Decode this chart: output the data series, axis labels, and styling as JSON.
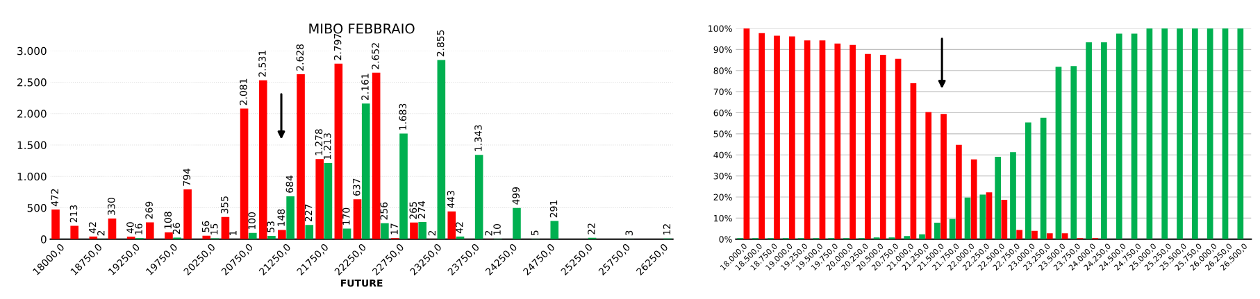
{
  "chart_data": [
    {
      "type": "bar",
      "title": "MIBO FEBBRAIO",
      "xlabel": "FUTURE",
      "categories": [
        "18000,0",
        null,
        "18750,0",
        null,
        "19250,0",
        null,
        "19750,0",
        null,
        "20250,0",
        null,
        "20750,0",
        null,
        "21250,0",
        null,
        "21750,0",
        null,
        "22250,0",
        null,
        "22750,0",
        null,
        "23250,0",
        null,
        "23750,0",
        null,
        "24250,0",
        null,
        "24750,0",
        null,
        "25250,0",
        null,
        "25750,0",
        null,
        "26250,0"
      ],
      "series": [
        {
          "color": "#ff0000",
          "values": [
            472,
            213,
            42,
            330,
            40,
            269,
            108,
            794,
            56,
            355,
            2081,
            2531,
            148,
            2628,
            1278,
            2797,
            637,
            2652,
            17,
            265,
            2,
            443,
            null,
            2,
            null,
            null,
            null,
            null,
            null,
            null,
            null,
            null,
            null
          ],
          "value_labels": [
            "472",
            "213",
            "42",
            "330",
            "40",
            "269",
            "108",
            "794",
            "56",
            "355",
            "2.081",
            "2.531",
            "148",
            "2.628",
            "1.278",
            "2.797",
            "637",
            "2.652",
            "17",
            "265",
            "2",
            "443",
            null,
            "2",
            null,
            null,
            null,
            null,
            null,
            null,
            null,
            null,
            null
          ]
        },
        {
          "color": "#00b050",
          "values": [
            null,
            null,
            2,
            null,
            16,
            null,
            26,
            null,
            15,
            1,
            100,
            53,
            684,
            227,
            1213,
            170,
            2161,
            256,
            1683,
            274,
            2855,
            42,
            1343,
            10,
            499,
            5,
            291,
            null,
            22,
            null,
            3,
            null,
            12
          ],
          "value_labels": [
            null,
            null,
            "2",
            null,
            "16",
            null,
            "26",
            null,
            "15",
            "1",
            "100",
            "53",
            "684",
            "227",
            "1.213",
            "170",
            "2.161",
            "256",
            "1.683",
            "274",
            "2.855",
            "42",
            "1.343",
            "10",
            "499",
            "5",
            "291",
            null,
            "22",
            null,
            "3",
            null,
            "12"
          ]
        }
      ],
      "ylim": [
        0,
        3000
      ],
      "yticks": [
        0,
        {
          "value": 500,
          "label": "500"
        },
        {
          "value": 1000,
          "label": "1.000"
        },
        {
          "value": 1500,
          "label": "1.500"
        },
        {
          "value": 2000,
          "label": "2.000"
        },
        {
          "value": 2500,
          "label": "2.500"
        },
        {
          "value": 3000,
          "label": "3.000"
        }
      ],
      "grid": "y"
    },
    {
      "type": "bar",
      "categories": [
        "18.000,0",
        "18.500,0",
        "18.750,0",
        "19.000,0",
        "19.250,0",
        "19.500,0",
        "19.750,0",
        "20.000,0",
        "20.250,0",
        "20.500,0",
        "20.750,0",
        "21.000,0",
        "21.250,0",
        "21.500,0",
        "21.750,0",
        "22.000,0",
        "22.250,0",
        "22.500,0",
        "22.750,0",
        "23.000,0",
        "23.250,0",
        "23.500,0",
        "23.750,0",
        "24.000,0",
        "24.250,0",
        "24.500,0",
        "24.750,0",
        "25.000,0",
        "25.250,0",
        "25.500,0",
        "25.750,0",
        "26.000,0",
        "26.250,0",
        "26.500,0"
      ],
      "series": [
        {
          "color": "#00b050",
          "values": [
            0.5,
            0.5,
            0.5,
            0.5,
            0.5,
            0.5,
            0.5,
            0.5,
            0.5,
            0.8,
            0.8,
            1.5,
            2.3,
            7.8,
            9.6,
            19.8,
            21.2,
            39.1,
            41.3,
            55.4,
            57.6,
            81.8,
            82.1,
            93.4,
            93.4,
            97.5,
            97.5,
            100,
            100,
            100,
            100,
            100,
            100,
            100
          ]
        },
        {
          "color": "#ff0000",
          "values": [
            100,
            97.8,
            96.5,
            96.2,
            94.3,
            94.3,
            92.8,
            92.2,
            87.9,
            87.5,
            85.6,
            74.0,
            60.3,
            59.4,
            44.8,
            37.9,
            22.2,
            18.7,
            4.4,
            4.0,
            2.8,
            2.8,
            0.5,
            0.5,
            null,
            null,
            null,
            null,
            null,
            null,
            null,
            null,
            null,
            null
          ]
        }
      ],
      "ylim": [
        0,
        100
      ],
      "yticks": [
        {
          "value": 0,
          "label": "0%"
        },
        {
          "value": 10,
          "label": "10%"
        },
        {
          "value": 20,
          "label": "20%"
        },
        {
          "value": 30,
          "label": "30%"
        },
        {
          "value": 40,
          "label": "40%"
        },
        {
          "value": 50,
          "label": "50%"
        },
        {
          "value": 60,
          "label": "60%"
        },
        {
          "value": 70,
          "label": "70%"
        },
        {
          "value": 80,
          "label": "80%"
        },
        {
          "value": 90,
          "label": "90%"
        },
        {
          "value": 100,
          "label": "100%"
        }
      ],
      "grid": "y"
    }
  ]
}
